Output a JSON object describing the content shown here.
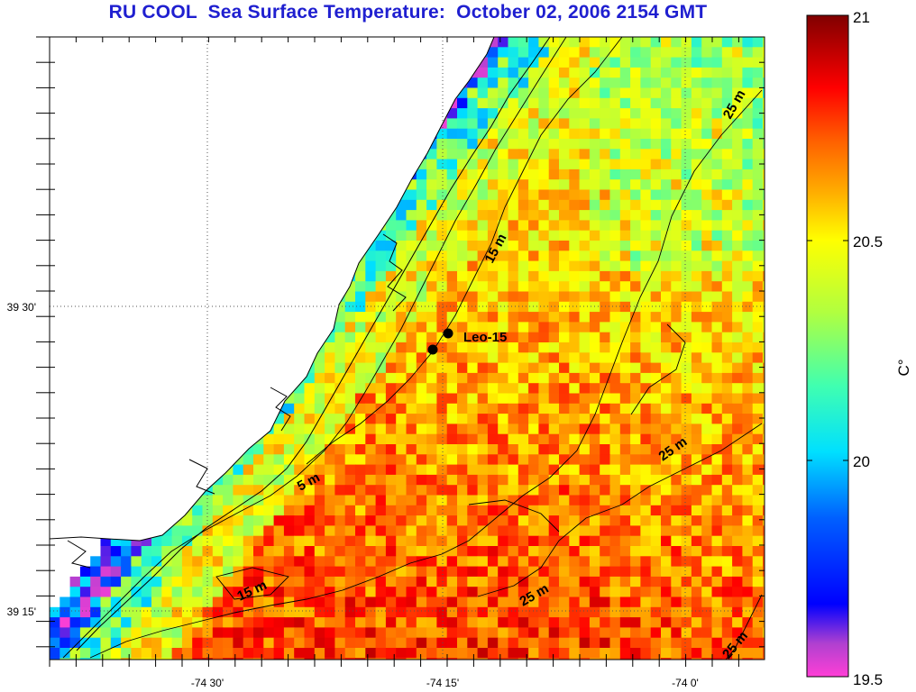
{
  "title": "RU COOL  Sea Surface Temperature:  October 02, 2006 2154 GMT",
  "axes": {
    "x_ticks": [
      {
        "value": -74.5,
        "label": "-74 30'"
      },
      {
        "value": -74.25,
        "label": "-74 15'"
      },
      {
        "value": -74.0,
        "label": "-74 0'"
      }
    ],
    "y_ticks": [
      {
        "value": 39.5,
        "label": "39 30'"
      },
      {
        "value": 39.25,
        "label": "39 15'"
      }
    ]
  },
  "contour_labels": [
    {
      "text": "5 m",
      "depth_m": 5
    },
    {
      "text": "15 m",
      "depth_m": 15
    },
    {
      "text": "15 m",
      "depth_m": 15
    },
    {
      "text": "25 m",
      "depth_m": 25
    },
    {
      "text": "25 m",
      "depth_m": 25
    },
    {
      "text": "25 m",
      "depth_m": 25
    },
    {
      "text": "25 m",
      "depth_m": 25
    }
  ],
  "site": {
    "label": "Leo-15"
  },
  "colorbar": {
    "unit_label": "C°",
    "min": 19.5,
    "max": 21,
    "tick_labels": [
      "21",
      "20.5",
      "20",
      "19.5"
    ],
    "colormap": "jet-with-magenta-low"
  },
  "colors": {
    "title": "#1f1fd0",
    "land": "#ffffff",
    "coast_and_contours": "#000000",
    "gridline": "#555555"
  }
}
